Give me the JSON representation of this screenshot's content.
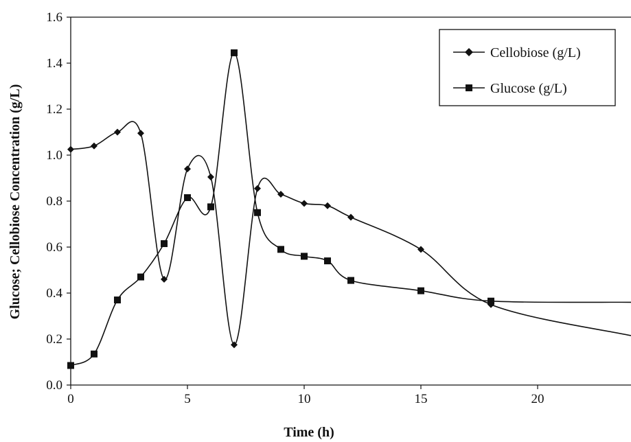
{
  "chart_data": {
    "type": "line",
    "title": "",
    "xlabel": "Time (h)",
    "ylabel": "Glucose; Cellobiose Concentration (g/L)",
    "xlim": [
      0,
      24
    ],
    "ylim": [
      0,
      1.6
    ],
    "x_ticks": [
      "0",
      "5",
      "10",
      "15",
      "20"
    ],
    "y_ticks": [
      "0.0",
      "0.2",
      "0.4",
      "0.6",
      "0.8",
      "1.0",
      "1.2",
      "1.4",
      "1.6"
    ],
    "grid": false,
    "legend_position": "top-right",
    "series": [
      {
        "name": "Cellobiose (g/L)",
        "marker": "diamond",
        "color": "#111111",
        "x": [
          0,
          1,
          2,
          3,
          4,
          5,
          6,
          7,
          8,
          9,
          10,
          11,
          12,
          15,
          18
        ],
        "y": [
          1.025,
          1.04,
          1.1,
          1.095,
          0.46,
          0.94,
          0.905,
          0.175,
          0.855,
          0.83,
          0.79,
          0.78,
          0.73,
          0.59,
          0.35
        ],
        "trailing_line_end": {
          "x": 24,
          "y": 0.215
        }
      },
      {
        "name": "Glucose (g/L)",
        "marker": "square",
        "color": "#111111",
        "x": [
          0,
          1,
          2,
          3,
          4,
          5,
          6,
          7,
          8,
          9,
          10,
          11,
          12,
          15,
          18
        ],
        "y": [
          0.085,
          0.135,
          0.37,
          0.47,
          0.615,
          0.815,
          0.775,
          1.445,
          0.75,
          0.59,
          0.56,
          0.54,
          0.455,
          0.41,
          0.365
        ],
        "trailing_line_end": {
          "x": 24,
          "y": 0.36
        }
      }
    ]
  }
}
